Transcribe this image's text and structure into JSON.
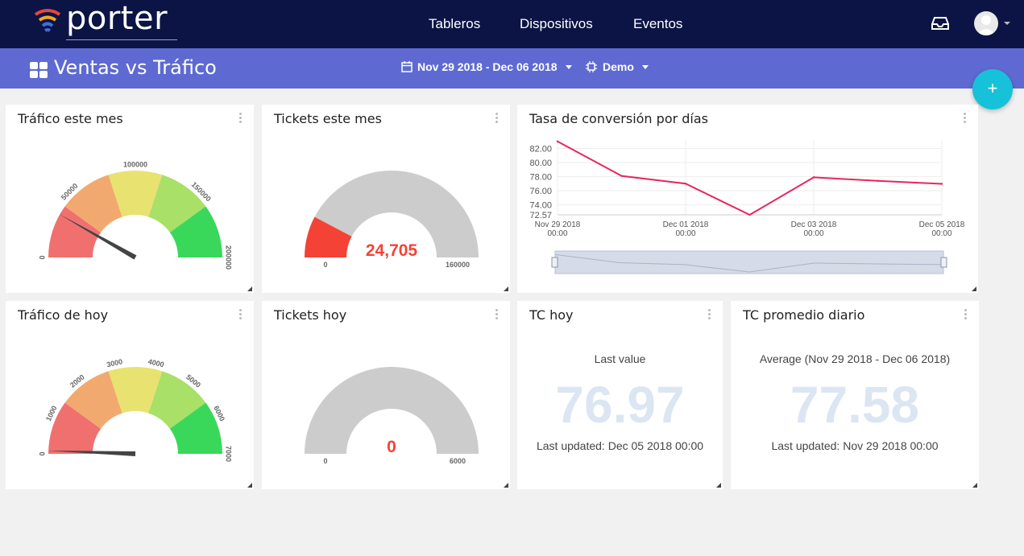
{
  "brand": {
    "name": "porter"
  },
  "nav": {
    "items": [
      "Tableros",
      "Dispositivos",
      "Eventos"
    ]
  },
  "header": {
    "title": "Ventas vs Tráfico",
    "date_range": "Nov 29 2018 - Dec 06 2018",
    "device": "Demo"
  },
  "fab": {
    "label": "+"
  },
  "icons": {
    "logo": "wifi-logo-icon",
    "inbox": "inbox-icon",
    "avatar": "user-avatar-icon",
    "dashboard": "dashboard-grid-icon",
    "calendar": "calendar-icon",
    "device": "chip-icon",
    "menu": "kebab-menu-icon",
    "resize": "resize-handle-icon"
  },
  "colors": {
    "topbar": "#0b1445",
    "subbar": "#5e6ad2",
    "fab": "#16c1d9",
    "line": "#e8265e",
    "big_number": "#dce6f2",
    "gauge_value": "#f44336"
  },
  "widgets": {
    "trafico_mes": {
      "title": "Tráfico este mes"
    },
    "tickets_mes": {
      "title": "Tickets este mes"
    },
    "conversion": {
      "title": "Tasa de conversión por días"
    },
    "trafico_hoy": {
      "title": "Tráfico de hoy"
    },
    "tickets_hoy": {
      "title": "Tickets hoy"
    },
    "tc_hoy": {
      "title": "TC hoy",
      "label": "Last value",
      "value": "76.97",
      "updated": "Last updated: Dec 05 2018 00:00"
    },
    "tc_promedio": {
      "title": "TC promedio diario",
      "label": "Average (Nov 29 2018 - Dec 06 2018)",
      "value": "77.58",
      "updated": "Last updated: Nov 29 2018 00:00"
    }
  },
  "chart_data": [
    {
      "type": "gauge",
      "widget": "Tráfico este mes",
      "min": 0,
      "max": 200000,
      "tick_labels": [
        "0",
        "50000",
        "100000",
        "150000",
        "200000"
      ],
      "band_colors": [
        "#f07070",
        "#f2a970",
        "#e8e270",
        "#a8e068",
        "#3ad85a"
      ],
      "value": 33000
    },
    {
      "type": "gauge",
      "widget": "Tickets este mes",
      "min": 0,
      "max": 160000,
      "min_label": "0",
      "max_label": "160000",
      "value": 24705,
      "value_label": "24,705",
      "fill_color": "#f44336",
      "track_color": "#cccccc"
    },
    {
      "type": "line",
      "widget": "Tasa de conversión por días",
      "x": [
        "Nov 29 2018 00:00",
        "Nov 30 2018 00:00",
        "Dec 01 2018 00:00",
        "Dec 02 2018 00:00",
        "Dec 03 2018 00:00",
        "Dec 04 2018 00:00",
        "Dec 05 2018 00:00"
      ],
      "x_tick_labels": [
        [
          "Nov 29 2018",
          "00:00"
        ],
        [
          "Dec 01 2018",
          "00:00"
        ],
        [
          "Dec 03 2018",
          "00:00"
        ],
        [
          "Dec 05 2018",
          "00:00"
        ]
      ],
      "series": [
        {
          "values": [
            83.0,
            78.1,
            77.0,
            72.57,
            77.9,
            77.4,
            76.97
          ]
        }
      ],
      "y_ticks": [
        "82.00",
        "80.00",
        "78.00",
        "76.00",
        "74.00",
        "72.57"
      ],
      "ylim": [
        72.57,
        83.2
      ],
      "grid": true,
      "color": "#e8265e"
    },
    {
      "type": "gauge",
      "widget": "Tráfico de hoy",
      "min": 0,
      "max": 7000,
      "tick_labels": [
        "0",
        "1000",
        "2000",
        "3000",
        "4000",
        "5000",
        "6000",
        "7000"
      ],
      "band_colors": [
        "#f07070",
        "#f2a970",
        "#e8e270",
        "#a8e068",
        "#3ad85a"
      ],
      "value": 80
    },
    {
      "type": "gauge",
      "widget": "Tickets hoy",
      "min": 0,
      "max": 6000,
      "min_label": "0",
      "max_label": "6000",
      "value": 0,
      "value_label": "0",
      "fill_color": "#f44336",
      "track_color": "#cccccc"
    }
  ]
}
